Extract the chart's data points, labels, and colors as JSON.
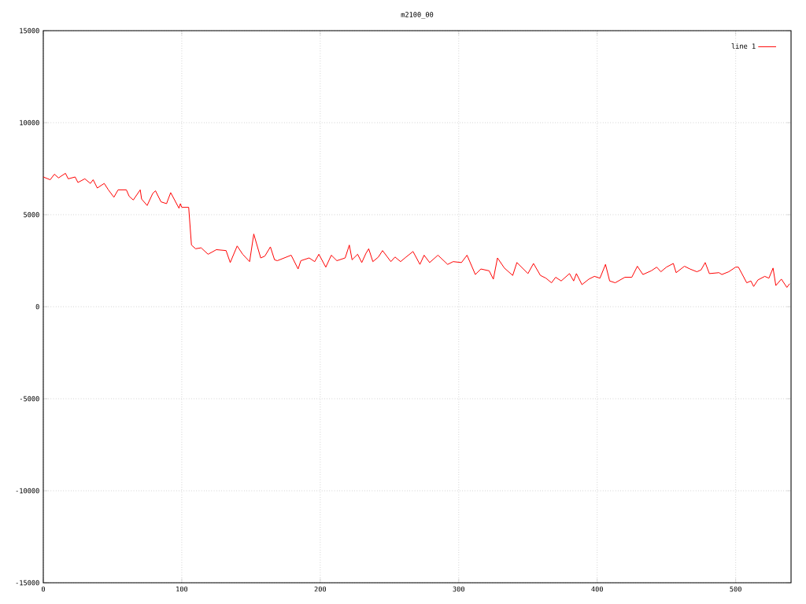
{
  "chart_data": {
    "type": "line",
    "title": "m2100_00",
    "xlim": [
      0,
      540
    ],
    "ylim": [
      -15000,
      15000
    ],
    "xticks": [
      0,
      100,
      200,
      300,
      400,
      500
    ],
    "yticks": [
      -15000,
      -10000,
      -5000,
      0,
      5000,
      10000,
      15000
    ],
    "grid": true,
    "legend": "top right",
    "line_style": "solid",
    "marker": "none",
    "series": [
      {
        "name": "line 1",
        "color": "#ff0000",
        "x": [
          0,
          5,
          8,
          11,
          16,
          18,
          23,
          25,
          30,
          34,
          36,
          39,
          44,
          47,
          51,
          54,
          60,
          62,
          65,
          70,
          71,
          75,
          79,
          81,
          85,
          89,
          92,
          98,
          99,
          100,
          105,
          107,
          110,
          114,
          119,
          125,
          132,
          135,
          140,
          144,
          149,
          152,
          157,
          160,
          164,
          167,
          169,
          179,
          184,
          186,
          192,
          196,
          199,
          204,
          208,
          212,
          218,
          221,
          223,
          227,
          230,
          233,
          235,
          238,
          242,
          245,
          251,
          254,
          258,
          262,
          267,
          272,
          275,
          279,
          285,
          292,
          296,
          302,
          306,
          312,
          316,
          322,
          325,
          328,
          333,
          339,
          342,
          350,
          354,
          359,
          363,
          367,
          370,
          374,
          380,
          383,
          385,
          389,
          394,
          398,
          402,
          406,
          409,
          413,
          420,
          425,
          429,
          433,
          439,
          443,
          446,
          450,
          455,
          457,
          463,
          467,
          472,
          475,
          478,
          481,
          488,
          490,
          495,
          500,
          502,
          508,
          511,
          513,
          516,
          521,
          524,
          527,
          529,
          533,
          537,
          539
        ],
        "values": [
          7050,
          6900,
          7200,
          7000,
          7250,
          6950,
          7050,
          6750,
          6950,
          6700,
          6900,
          6450,
          6700,
          6350,
          5950,
          6350,
          6350,
          6000,
          5800,
          6350,
          5850,
          5500,
          6150,
          6300,
          5700,
          5600,
          6200,
          5350,
          5600,
          5400,
          5400,
          3350,
          3150,
          3200,
          2850,
          3100,
          3050,
          2400,
          3300,
          2850,
          2450,
          3950,
          2650,
          2750,
          3250,
          2550,
          2500,
          2800,
          2050,
          2500,
          2650,
          2450,
          2850,
          2150,
          2800,
          2500,
          2650,
          3350,
          2550,
          2850,
          2400,
          2900,
          3150,
          2450,
          2700,
          3050,
          2450,
          2700,
          2450,
          2700,
          3000,
          2300,
          2800,
          2400,
          2800,
          2300,
          2450,
          2400,
          2800,
          1750,
          2050,
          1950,
          1500,
          2650,
          2100,
          1700,
          2400,
          1800,
          2350,
          1700,
          1550,
          1300,
          1600,
          1400,
          1800,
          1400,
          1800,
          1200,
          1500,
          1650,
          1550,
          2300,
          1400,
          1300,
          1600,
          1600,
          2200,
          1750,
          1950,
          2150,
          1900,
          2150,
          2350,
          1850,
          2200,
          2050,
          1900,
          2000,
          2400,
          1800,
          1850,
          1750,
          1900,
          2150,
          2150,
          1300,
          1400,
          1100,
          1450,
          1650,
          1550,
          2100,
          1150,
          1500,
          1050,
          1250
        ]
      }
    ]
  }
}
